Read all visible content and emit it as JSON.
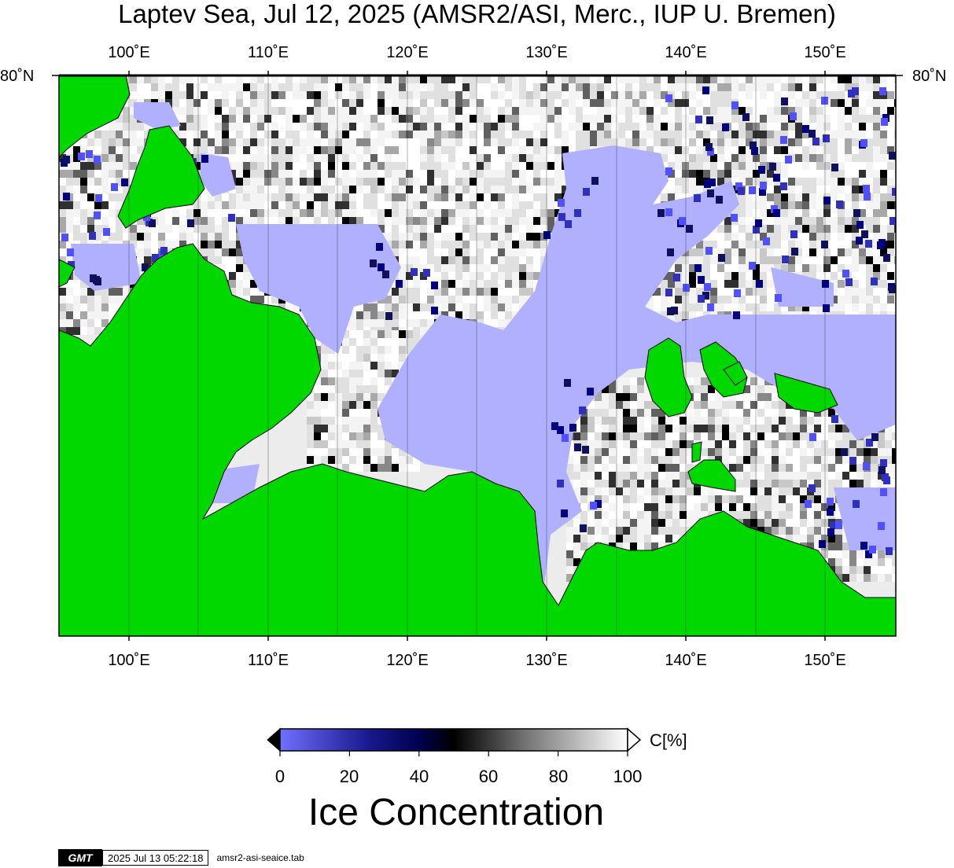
{
  "title": "Laptev Sea, Jul 12, 2025 (AMSR2/ASI, Merc., IUP U. Bremen)",
  "map": {
    "lon_ticks": [
      "100˚E",
      "110˚E",
      "120˚E",
      "130˚E",
      "140˚E",
      "150˚E"
    ],
    "lon_values": [
      100,
      110,
      120,
      130,
      140,
      150
    ],
    "lon_range": [
      95,
      155
    ],
    "lat_label": "80˚N",
    "land_color": "#00d800",
    "open_water_color": "#b0b0ff"
  },
  "colorbar": {
    "ticks": [
      "0",
      "20",
      "40",
      "60",
      "80",
      "100"
    ],
    "unit": "C[%]",
    "title": "Ice Concentration",
    "stops": [
      "#7070ff",
      "#000070",
      "#000000",
      "#707070",
      "#ffffff"
    ]
  },
  "footer": {
    "logo": "GMT",
    "timestamp": "2025 Jul 13 05:22:18",
    "filename": "amsr2-asi-seaice.tab"
  }
}
